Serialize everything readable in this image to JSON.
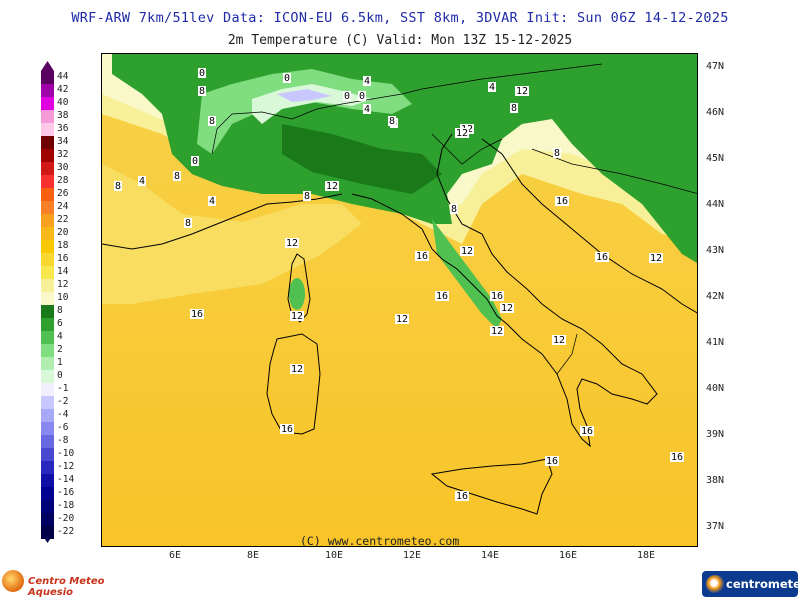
{
  "header": {
    "line1": "WRF-ARW 7km/51lev  Data: ICON-EU 6.5km, SST 8km, 3DVAR  Init: Sun 06Z 14-12-2025",
    "line2": "2m Temperature (C)  Valid: Mon 13Z 15-12-2025"
  },
  "map": {
    "lat_ticks": [
      "47N",
      "46N",
      "45N",
      "44N",
      "43N",
      "42N",
      "41N",
      "40N",
      "39N",
      "38N",
      "37N"
    ],
    "lon_ticks": [
      "6E",
      "8E",
      "10E",
      "12E",
      "14E",
      "16E",
      "18E"
    ],
    "contour_labels": [
      "0",
      "8",
      "8",
      "0",
      "4",
      "8",
      "4",
      "8",
      "0",
      "0",
      "4",
      "8",
      "12",
      "12",
      "4",
      "0",
      "8",
      "12",
      "8",
      "8",
      "8",
      "12",
      "12",
      "4",
      "8",
      "8",
      "12",
      "12",
      "16",
      "16",
      "12",
      "16",
      "16",
      "12",
      "16",
      "16",
      "12",
      "12",
      "12",
      "12",
      "16",
      "16",
      "16",
      "16",
      "16"
    ],
    "copyright": "(C) www.centrometeo.com"
  },
  "legend": {
    "labels": [
      "44",
      "42",
      "40",
      "38",
      "36",
      "34",
      "32",
      "30",
      "28",
      "26",
      "24",
      "22",
      "20",
      "18",
      "16",
      "14",
      "12",
      "10",
      "8",
      "6",
      "4",
      "2",
      "1",
      "0",
      "-1",
      "-2",
      "-4",
      "-6",
      "-8",
      "-10",
      "-12",
      "-14",
      "-16",
      "-18",
      "-20",
      "-22"
    ],
    "colors": [
      "#5a0060",
      "#a000a8",
      "#e000e0",
      "#f49ad8",
      "#ffc8e8",
      "#700000",
      "#a00000",
      "#d01818",
      "#f83030",
      "#f86010",
      "#f88028",
      "#f8a020",
      "#f8b818",
      "#f8c800",
      "#f8d830",
      "#f8e850",
      "#f8f098",
      "#f8f8c8",
      "#1a7a1a",
      "#2ea02e",
      "#50c050",
      "#80dd80",
      "#b0eeb0",
      "#d8f8d8",
      "#f0f0ff",
      "#c8c8ff",
      "#a8a8f8",
      "#8888f0",
      "#6868e0",
      "#4848d0",
      "#2828c0",
      "#1010a8",
      "#000090",
      "#000078",
      "#000060",
      "#000048"
    ],
    "title_arrow_up": "arrow-up",
    "title_arrow_down": "arrow-down"
  },
  "branding": {
    "left": "Centro Meteo Aquesio",
    "right": "centrometeo"
  }
}
